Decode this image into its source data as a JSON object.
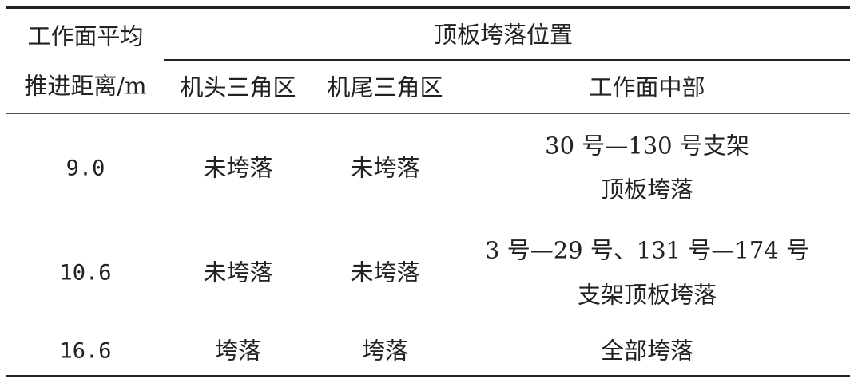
{
  "table": {
    "header": {
      "col1_line1": "工作面平均",
      "col1_line2": "推进距离/m",
      "group": "顶板垮落位置",
      "sub": [
        "机头三角区",
        "机尾三角区",
        "工作面中部"
      ]
    },
    "rows": [
      {
        "distance": "9.0",
        "head": "未垮落",
        "tail": "未垮落",
        "middle_line1": "30 号—130 号支架",
        "middle_line2": "顶板垮落"
      },
      {
        "distance": "10.6",
        "head": "未垮落",
        "tail": "未垮落",
        "middle_line1": "3 号—29 号、131 号—174 号",
        "middle_line2": "支架顶板垮落"
      },
      {
        "distance": "16.6",
        "head": "垮落",
        "tail": "垮落",
        "middle_line1": "全部垮落",
        "middle_line2": ""
      }
    ]
  }
}
